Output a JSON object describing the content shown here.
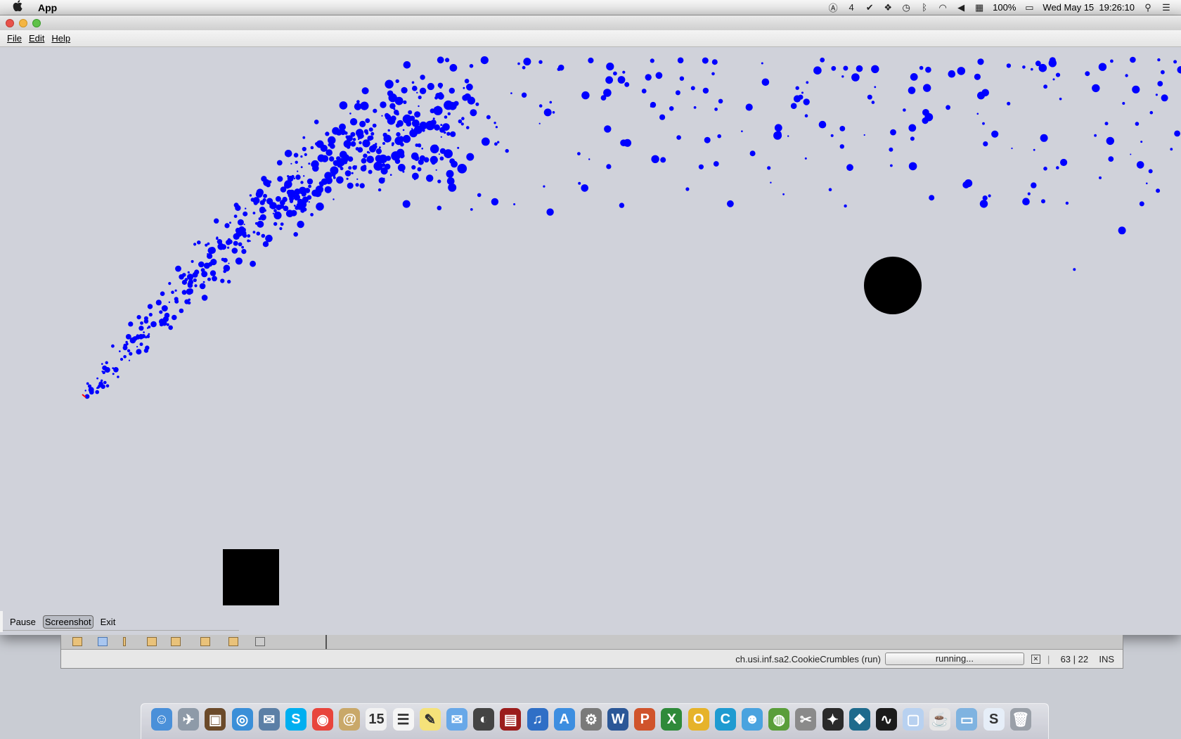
{
  "menubar": {
    "apple_icon": "apple-icon",
    "app_name": "App",
    "status_items": [
      {
        "name": "adobe-icon",
        "glyph": "A"
      },
      {
        "name": "notifications-count",
        "glyph": "4"
      },
      {
        "name": "checkmark-icon",
        "glyph": "✓"
      },
      {
        "name": "dropbox-icon",
        "glyph": "⧉"
      },
      {
        "name": "time-machine-icon",
        "glyph": "⟲"
      },
      {
        "name": "bluetooth-icon",
        "glyph": "ᛒ"
      },
      {
        "name": "wifi-icon",
        "glyph": "⌔"
      },
      {
        "name": "volume-icon",
        "glyph": "◀"
      },
      {
        "name": "flag-icon",
        "glyph": "▦"
      }
    ],
    "battery_percent": "100%",
    "battery_icon": "battery-icon",
    "datetime": "Wed May 15  19:26:10",
    "search_icon": "spotlight-icon",
    "list_icon": "notification-center-icon"
  },
  "app_menu": {
    "file": "File",
    "edit": "Edit",
    "help": "Help"
  },
  "controls": {
    "pause": "Pause",
    "screenshot": "Screenshot",
    "exit": "Exit"
  },
  "ide_status": {
    "project": "ch.usi.inf.sa2.CookieCrumbles (run)",
    "progress_text": "running...",
    "position": "63 | 22",
    "mode": "INS"
  },
  "colors": {
    "crumb": "#0000ff",
    "canvas": "#d0d2da",
    "obstacle": "#000000",
    "accent_red": "#ff0000"
  },
  "dock": {
    "icons": [
      {
        "name": "finder-icon",
        "glyph": "☺",
        "color": "#4a90d9"
      },
      {
        "name": "launchpad-icon",
        "glyph": "✈",
        "color": "#8e9aa8"
      },
      {
        "name": "photo-booth-icon",
        "glyph": "▣",
        "color": "#6b4a2a"
      },
      {
        "name": "safari-icon",
        "glyph": "◎",
        "color": "#3a8fd8"
      },
      {
        "name": "mail-icon",
        "glyph": "✉",
        "color": "#5b7fa6"
      },
      {
        "name": "skype-icon",
        "glyph": "S",
        "color": "#00aff0"
      },
      {
        "name": "chrome-icon",
        "glyph": "◉",
        "color": "#e8453c"
      },
      {
        "name": "contacts-icon",
        "glyph": "@",
        "color": "#c9a869"
      },
      {
        "name": "calendar-icon",
        "glyph": "15",
        "color": "#f2f2f2"
      },
      {
        "name": "reminders-icon",
        "glyph": "☰",
        "color": "#f5f5f5"
      },
      {
        "name": "notes-icon",
        "glyph": "✎",
        "color": "#f5e27a"
      },
      {
        "name": "messages-icon",
        "glyph": "✉",
        "color": "#68a8e8"
      },
      {
        "name": "facetime-icon",
        "glyph": "◐",
        "color": "#444"
      },
      {
        "name": "photos-icon",
        "glyph": "▤",
        "color": "#9b1c1c"
      },
      {
        "name": "itunes-icon",
        "glyph": "♫",
        "color": "#2f6fc6"
      },
      {
        "name": "app-store-icon",
        "glyph": "A",
        "color": "#3d8ee0"
      },
      {
        "name": "system-preferences-icon",
        "glyph": "⚙",
        "color": "#7a7a7a"
      },
      {
        "name": "word-icon",
        "glyph": "W",
        "color": "#2b5797"
      },
      {
        "name": "powerpoint-icon",
        "glyph": "P",
        "color": "#d0542c"
      },
      {
        "name": "excel-icon",
        "glyph": "X",
        "color": "#2f8a3a"
      },
      {
        "name": "outlook-icon",
        "glyph": "O",
        "color": "#e6b32a"
      },
      {
        "name": "c-app-icon",
        "glyph": "C",
        "color": "#1f9bd1"
      },
      {
        "name": "messenger-icon",
        "glyph": "☻",
        "color": "#4aa3df"
      },
      {
        "name": "globe-icon",
        "glyph": "◍",
        "color": "#5a9e3a"
      },
      {
        "name": "image-tool-icon",
        "glyph": "✂",
        "color": "#8a8a8a"
      },
      {
        "name": "cyberduck-icon",
        "glyph": "✦",
        "color": "#2a2a2a"
      },
      {
        "name": "sourcetree-icon",
        "glyph": "❖",
        "color": "#1e6a8c"
      },
      {
        "name": "activity-monitor-icon",
        "glyph": "∿",
        "color": "#1b1b1b"
      },
      {
        "name": "virtualbox-icon",
        "glyph": "▢",
        "color": "#b8d1f0"
      },
      {
        "name": "java-icon",
        "glyph": "☕",
        "color": "#e6e6e6"
      },
      {
        "name": "documents-folder-icon",
        "glyph": "▭",
        "color": "#7fb3e0"
      },
      {
        "name": "downloads-stack-icon",
        "glyph": "S",
        "color": "#e6eef8"
      },
      {
        "name": "trash-icon",
        "glyph": "🗑",
        "color": "#9aa0a8"
      }
    ]
  }
}
